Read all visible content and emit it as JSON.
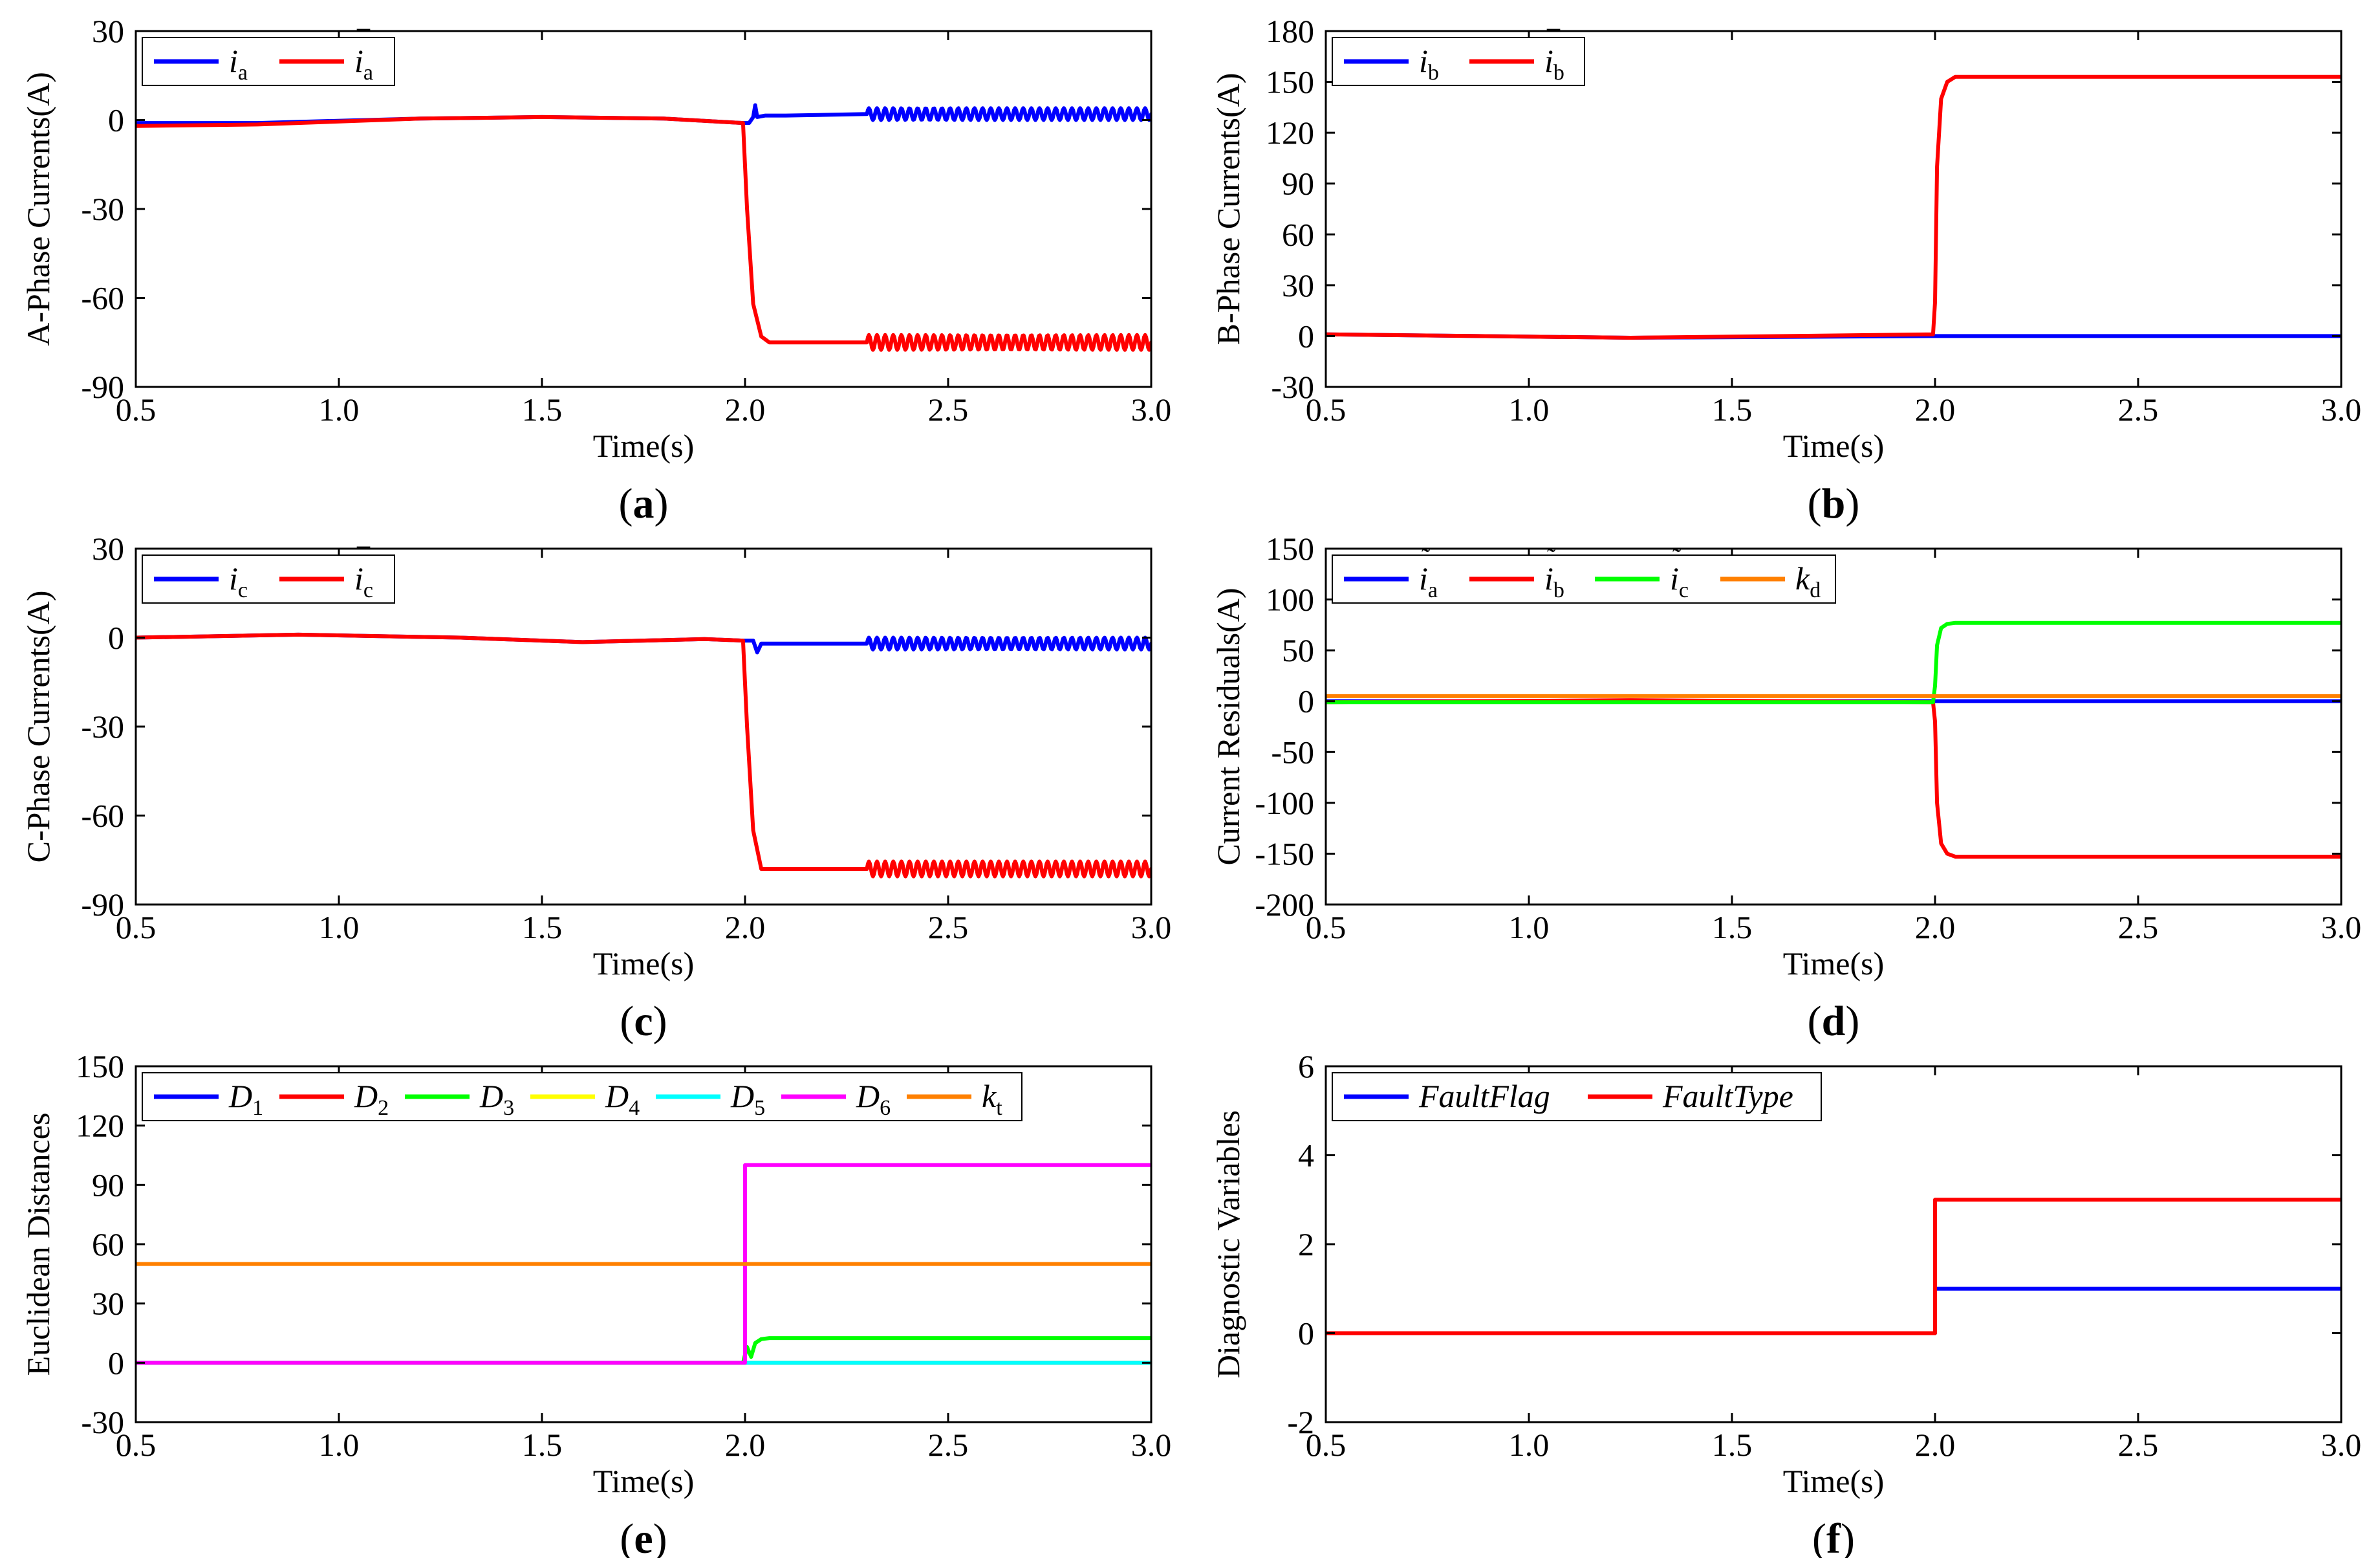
{
  "chart_data": [
    {
      "id": "a",
      "type": "line",
      "caption": "(a)",
      "caption_letter": "a",
      "xlabel": "Time(s)",
      "ylabel": "A-Phase Currents(A)",
      "xlim": [
        0.5,
        3.0
      ],
      "ylim": [
        -90,
        30
      ],
      "xticks": [
        0.5,
        1.0,
        1.5,
        2.0,
        2.5,
        3.0
      ],
      "yticks": [
        -90,
        -60,
        -30,
        0,
        30
      ],
      "legend_position": "top-left",
      "series": [
        {
          "name": "i_a",
          "legend": {
            "base": "i",
            "sub": "a",
            "mark": "",
            "italic": true
          },
          "color": "#0000ff",
          "x": [
            0.5,
            0.8,
            1.2,
            1.5,
            1.8,
            1.995,
            2.01,
            2.02,
            2.025,
            2.03,
            2.05,
            2.1,
            2.3,
            2.6,
            3.0
          ],
          "y": [
            -1,
            -1,
            0.5,
            1,
            0.5,
            -1,
            -1,
            1,
            5,
            1,
            1.5,
            1.5,
            2,
            2,
            2
          ],
          "osc": {
            "from": 2.3,
            "amp": 2
          }
        },
        {
          "name": "i_a_bar",
          "legend": {
            "base": "i",
            "sub": "a",
            "mark": "bar",
            "italic": true
          },
          "color": "#ff0000",
          "x": [
            0.5,
            0.8,
            1.2,
            1.5,
            1.8,
            1.995,
            2.005,
            2.02,
            2.04,
            2.06,
            2.1,
            2.3,
            3.0
          ],
          "y": [
            -2,
            -1.5,
            0.5,
            1,
            0.5,
            -1,
            -30,
            -62,
            -73,
            -75,
            -75,
            -75,
            -75
          ],
          "osc": {
            "from": 2.3,
            "amp": 2.5
          }
        }
      ]
    },
    {
      "id": "b",
      "type": "line",
      "caption": "(b)",
      "caption_letter": "b",
      "xlabel": "Time(s)",
      "ylabel": "B-Phase Currents(A)",
      "xlim": [
        0.5,
        3.0
      ],
      "ylim": [
        -30,
        180
      ],
      "xticks": [
        0.5,
        1.0,
        1.5,
        2.0,
        2.5,
        3.0
      ],
      "yticks": [
        -30,
        0,
        30,
        60,
        90,
        120,
        150,
        180
      ],
      "legend_position": "top-left",
      "series": [
        {
          "name": "i_b",
          "legend": {
            "base": "i",
            "sub": "b",
            "mark": "",
            "italic": true
          },
          "color": "#0000ff",
          "x": [
            0.5,
            1.25,
            2.0,
            3.0
          ],
          "y": [
            1,
            -1,
            0,
            0
          ]
        },
        {
          "name": "i_b_bar",
          "legend": {
            "base": "i",
            "sub": "b",
            "mark": "bar",
            "italic": true
          },
          "color": "#ff0000",
          "x": [
            0.5,
            1.25,
            1.995,
            2.0,
            2.005,
            2.015,
            2.03,
            2.05,
            2.1,
            3.0
          ],
          "y": [
            1,
            -1,
            1,
            20,
            100,
            140,
            150,
            153,
            153,
            153
          ]
        }
      ]
    },
    {
      "id": "c",
      "type": "line",
      "caption": "(c)",
      "caption_letter": "c",
      "xlabel": "Time(s)",
      "ylabel": "C-Phase Currents(A)",
      "xlim": [
        0.5,
        3.0
      ],
      "ylim": [
        -90,
        30
      ],
      "xticks": [
        0.5,
        1.0,
        1.5,
        2.0,
        2.5,
        3.0
      ],
      "yticks": [
        -90,
        -60,
        -30,
        0,
        30
      ],
      "legend_position": "top-left",
      "series": [
        {
          "name": "i_c",
          "legend": {
            "base": "i",
            "sub": "c",
            "mark": "",
            "italic": true
          },
          "color": "#0000ff",
          "x": [
            0.5,
            0.9,
            1.3,
            1.6,
            1.9,
            1.995,
            2.02,
            2.03,
            2.04,
            2.1,
            2.3,
            3.0
          ],
          "y": [
            0,
            1,
            0,
            -1.5,
            -0.5,
            -1,
            -1,
            -5,
            -2,
            -2,
            -2,
            -2
          ],
          "osc": {
            "from": 2.3,
            "amp": 2
          }
        },
        {
          "name": "i_c_bar",
          "legend": {
            "base": "i",
            "sub": "c",
            "mark": "bar",
            "italic": true
          },
          "color": "#ff0000",
          "x": [
            0.5,
            0.9,
            1.3,
            1.6,
            1.9,
            1.995,
            2.005,
            2.02,
            2.04,
            2.06,
            2.1,
            3.0
          ],
          "y": [
            0,
            1,
            0,
            -1.5,
            -0.5,
            -1,
            -30,
            -65,
            -78,
            -78,
            -78,
            -78
          ],
          "osc": {
            "from": 2.3,
            "amp": 2.5
          }
        }
      ]
    },
    {
      "id": "d",
      "type": "line",
      "caption": "(d)",
      "caption_letter": "d",
      "xlabel": "Time(s)",
      "ylabel": "Current Residuals(A)",
      "xlim": [
        0.5,
        3.0
      ],
      "ylim": [
        -200,
        150
      ],
      "xticks": [
        0.5,
        1.0,
        1.5,
        2.0,
        2.5,
        3.0
      ],
      "yticks": [
        -200,
        -150,
        -100,
        -50,
        0,
        50,
        100,
        150
      ],
      "legend_position": "top-left",
      "series": [
        {
          "name": "i_a_tilde",
          "legend": {
            "base": "i",
            "sub": "a",
            "mark": "tilde",
            "italic": true
          },
          "color": "#0000ff",
          "x": [
            0.5,
            3.0
          ],
          "y": [
            0,
            0
          ]
        },
        {
          "name": "i_b_tilde",
          "legend": {
            "base": "i",
            "sub": "b",
            "mark": "tilde",
            "italic": true
          },
          "color": "#ff0000",
          "x": [
            0.5,
            1.25,
            1.995,
            2.0,
            2.005,
            2.015,
            2.03,
            2.05,
            2.1,
            3.0
          ],
          "y": [
            -1,
            1,
            -1,
            -20,
            -100,
            -140,
            -150,
            -153,
            -153,
            -153
          ]
        },
        {
          "name": "i_c_tilde",
          "legend": {
            "base": "i",
            "sub": "c",
            "mark": "tilde",
            "italic": true
          },
          "color": "#00ff00",
          "x": [
            0.5,
            1.25,
            1.995,
            2.0,
            2.005,
            2.015,
            2.03,
            2.05,
            2.1,
            3.0
          ],
          "y": [
            -1,
            -1,
            -1,
            15,
            55,
            72,
            76,
            77,
            77,
            77
          ]
        },
        {
          "name": "k_d",
          "legend": {
            "base": "k",
            "sub": "d",
            "mark": "",
            "italic": true
          },
          "color": "#ff8000",
          "x": [
            0.5,
            3.0
          ],
          "y": [
            5,
            5
          ]
        }
      ]
    },
    {
      "id": "e",
      "type": "line",
      "caption": "(e)",
      "caption_letter": "e",
      "xlabel": "Time(s)",
      "ylabel": "Euclidean Distances",
      "xlim": [
        0.5,
        3.0
      ],
      "ylim": [
        -30,
        150
      ],
      "xticks": [
        0.5,
        1.0,
        1.5,
        2.0,
        2.5,
        3.0
      ],
      "yticks": [
        -30,
        0,
        30,
        60,
        90,
        120,
        150
      ],
      "legend_position": "top",
      "series": [
        {
          "name": "D1",
          "legend": {
            "base": "D",
            "sub": "1",
            "mark": "",
            "italic": true
          },
          "color": "#0000ff",
          "x": [
            0.5,
            3.0
          ],
          "y": [
            0,
            0
          ]
        },
        {
          "name": "D2",
          "legend": {
            "base": "D",
            "sub": "2",
            "mark": "",
            "italic": true
          },
          "color": "#ff0000",
          "x": [
            0.5,
            3.0
          ],
          "y": [
            0,
            0
          ]
        },
        {
          "name": "D3",
          "legend": {
            "base": "D",
            "sub": "3",
            "mark": "",
            "italic": true
          },
          "color": "#00ff00",
          "x": [
            0.5,
            1.995,
            2.005,
            2.015,
            2.025,
            2.04,
            2.06,
            2.1,
            3.0
          ],
          "y": [
            0,
            0,
            8,
            3,
            10,
            12,
            12.5,
            12.5,
            12.5
          ]
        },
        {
          "name": "D4",
          "legend": {
            "base": "D",
            "sub": "4",
            "mark": "",
            "italic": true
          },
          "color": "#ffff00",
          "x": [
            0.5,
            3.0
          ],
          "y": [
            0,
            0
          ]
        },
        {
          "name": "D5",
          "legend": {
            "base": "D",
            "sub": "5",
            "mark": "",
            "italic": true
          },
          "color": "#00ffff",
          "x": [
            0.5,
            3.0
          ],
          "y": [
            0,
            0
          ]
        },
        {
          "name": "D6",
          "legend": {
            "base": "D",
            "sub": "6",
            "mark": "",
            "italic": true
          },
          "color": "#ff00ff",
          "x": [
            0.5,
            2.0,
            2.0,
            3.0
          ],
          "y": [
            0,
            0,
            100,
            100
          ]
        },
        {
          "name": "k_t",
          "legend": {
            "base": "k",
            "sub": "t",
            "mark": "",
            "italic": true
          },
          "color": "#ff8000",
          "x": [
            0.5,
            3.0
          ],
          "y": [
            50,
            50
          ]
        }
      ]
    },
    {
      "id": "f",
      "type": "line",
      "caption": "(f)",
      "caption_letter": "f",
      "xlabel": "Time(s)",
      "ylabel": "Diagnostic Variables",
      "xlim": [
        0.5,
        3.0
      ],
      "ylim": [
        -2,
        6
      ],
      "xticks": [
        0.5,
        1.0,
        1.5,
        2.0,
        2.5,
        3.0
      ],
      "yticks": [
        -2,
        0,
        2,
        4,
        6
      ],
      "legend_position": "top-left",
      "series": [
        {
          "name": "FaultFlag",
          "legend": {
            "base": "FaultFlag",
            "sub": "",
            "mark": "",
            "italic": true
          },
          "color": "#0000ff",
          "x": [
            0.5,
            2.0,
            2.0,
            3.0
          ],
          "y": [
            0,
            0,
            1,
            1
          ]
        },
        {
          "name": "FaultType",
          "legend": {
            "base": "FaultType",
            "sub": "",
            "mark": "",
            "italic": true
          },
          "color": "#ff0000",
          "x": [
            0.5,
            2.0,
            2.0,
            3.0
          ],
          "y": [
            0,
            0,
            3,
            3
          ]
        }
      ]
    }
  ]
}
